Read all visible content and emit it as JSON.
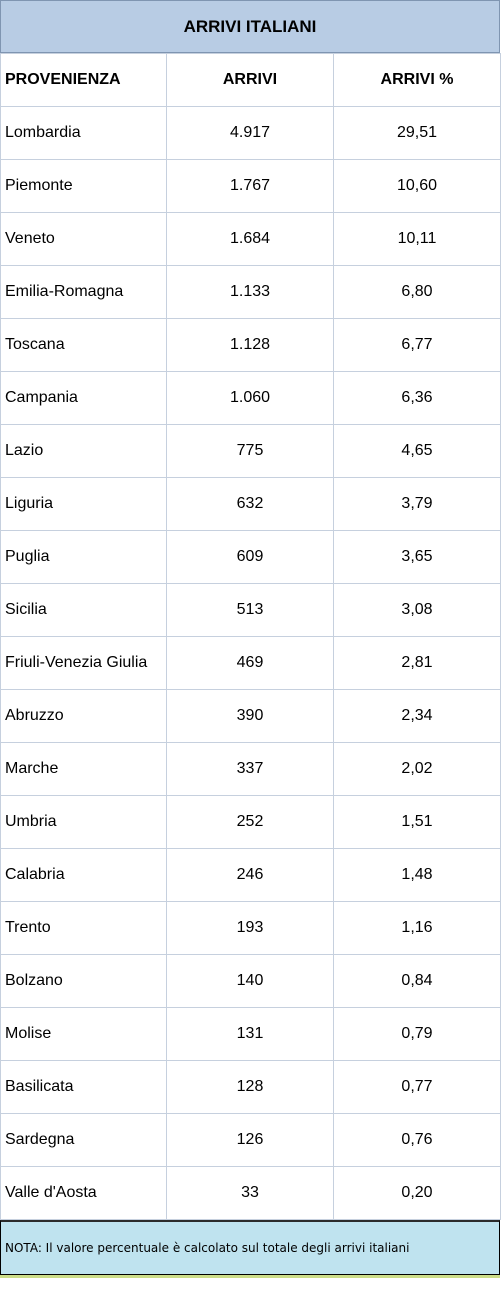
{
  "title": "ARRIVI ITALIANI",
  "headers": {
    "provenienza": "PROVENIENZA",
    "arrivi": "ARRIVI",
    "arrivi_pct": "ARRIVI %"
  },
  "rows": [
    {
      "region": "Lombardia",
      "arrivi": "4.917",
      "pct": "29,51"
    },
    {
      "region": "Piemonte",
      "arrivi": "1.767",
      "pct": "10,60"
    },
    {
      "region": "Veneto",
      "arrivi": "1.684",
      "pct": "10,11"
    },
    {
      "region": "Emilia-Romagna",
      "arrivi": "1.133",
      "pct": "6,80"
    },
    {
      "region": "Toscana",
      "arrivi": "1.128",
      "pct": "6,77"
    },
    {
      "region": "Campania",
      "arrivi": "1.060",
      "pct": "6,36"
    },
    {
      "region": "Lazio",
      "arrivi": "775",
      "pct": "4,65"
    },
    {
      "region": "Liguria",
      "arrivi": "632",
      "pct": "3,79"
    },
    {
      "region": "Puglia",
      "arrivi": "609",
      "pct": "3,65"
    },
    {
      "region": "Sicilia",
      "arrivi": "513",
      "pct": "3,08"
    },
    {
      "region": "Friuli-Venezia Giulia",
      "arrivi": "469",
      "pct": "2,81"
    },
    {
      "region": "Abruzzo",
      "arrivi": "390",
      "pct": "2,34"
    },
    {
      "region": "Marche",
      "arrivi": "337",
      "pct": "2,02"
    },
    {
      "region": "Umbria",
      "arrivi": "252",
      "pct": "1,51"
    },
    {
      "region": "Calabria",
      "arrivi": "246",
      "pct": "1,48"
    },
    {
      "region": "Trento",
      "arrivi": "193",
      "pct": "1,16"
    },
    {
      "region": "Bolzano",
      "arrivi": "140",
      "pct": "0,84"
    },
    {
      "region": "Molise",
      "arrivi": "131",
      "pct": "0,79"
    },
    {
      "region": "Basilicata",
      "arrivi": "128",
      "pct": "0,77"
    },
    {
      "region": "Sardegna",
      "arrivi": "126",
      "pct": "0,76"
    },
    {
      "region": "Valle d'Aosta",
      "arrivi": "33",
      "pct": "0,20"
    }
  ],
  "note": "NOTA: Il valore percentuale è calcolato sul totale degli arrivi italiani"
}
